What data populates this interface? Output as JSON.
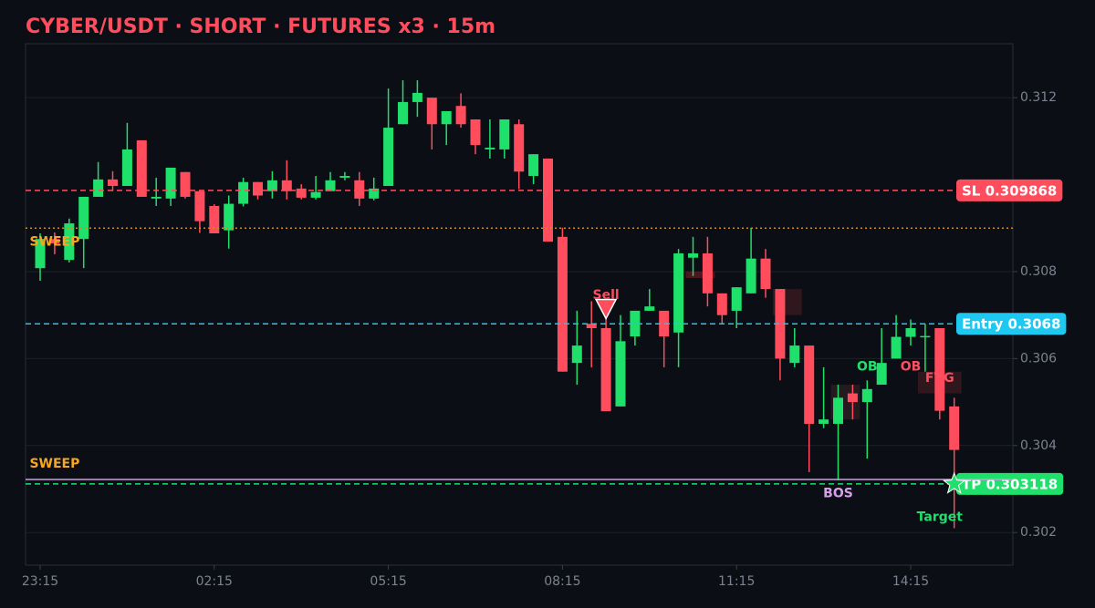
{
  "chart_data": {
    "type": "candlestick",
    "title": "CYBER/USDT · SHORT · FUTURES x3 · 15m",
    "categories": [
      "23:15",
      null,
      null,
      null,
      null,
      null,
      null,
      null,
      null,
      null,
      null,
      null,
      "02:15",
      null,
      null,
      null,
      null,
      null,
      null,
      null,
      null,
      null,
      null,
      null,
      "05:15",
      null,
      null,
      null,
      null,
      null,
      null,
      null,
      null,
      null,
      null,
      null,
      "08:15",
      null,
      null,
      null,
      null,
      null,
      null,
      null,
      null,
      null,
      null,
      null,
      "11:15",
      null,
      null,
      null,
      null,
      null,
      null,
      null,
      null,
      null,
      null,
      null,
      "14:15",
      null,
      null,
      null
    ],
    "open": [
      0.30808,
      0.30875,
      0.30827,
      0.30875,
      0.30972,
      0.31012,
      0.30997,
      0.31102,
      0.30968,
      0.30968,
      0.31029,
      0.30985,
      0.30951,
      0.30895,
      0.30956,
      0.31006,
      0.30985,
      0.3101,
      0.30991,
      0.3097,
      0.30985,
      0.31016,
      0.3101,
      0.30968,
      0.30997,
      0.31139,
      0.3119,
      0.312,
      0.31139,
      0.31181,
      0.3115,
      0.31081,
      0.31081,
      0.31139,
      0.3102,
      0.3106,
      0.3088,
      0.3059,
      0.3068,
      0.3067,
      0.3049,
      0.30651,
      0.3071,
      0.3071,
      0.3066,
      0.30832,
      0.30842,
      0.3075,
      0.3071,
      0.3075,
      0.3083,
      0.3076,
      0.3059,
      0.3063,
      0.3045,
      0.3045,
      0.3052,
      0.305,
      0.3054,
      0.306,
      0.3065,
      0.3065,
      0.3067,
      0.3049
    ],
    "high": [
      0.30888,
      0.3089,
      0.30922,
      0.30972,
      0.31052,
      0.31031,
      0.31142,
      0.31102,
      0.31016,
      0.31039,
      0.31029,
      0.30985,
      0.30955,
      0.30975,
      0.31016,
      0.31006,
      0.31031,
      0.31056,
      0.31001,
      0.3102,
      0.31029,
      0.31029,
      0.31029,
      0.31016,
      0.31221,
      0.3124,
      0.3124,
      0.312,
      0.31169,
      0.3121,
      0.3115,
      0.3115,
      0.3115,
      0.3115,
      0.3107,
      0.3106,
      0.30901,
      0.3071,
      0.30732,
      0.307,
      0.307,
      0.3071,
      0.3076,
      0.3071,
      0.30852,
      0.3088,
      0.3088,
      0.3075,
      0.30764,
      0.30901,
      0.30852,
      0.3076,
      0.3067,
      0.3063,
      0.3058,
      0.3054,
      0.3054,
      0.3055,
      0.3067,
      0.307,
      0.3069,
      0.3068,
      0.3067,
      0.3051
    ],
    "low": [
      0.30779,
      0.3084,
      0.30821,
      0.30808,
      0.30972,
      0.30985,
      0.30997,
      0.30972,
      0.30951,
      0.30951,
      0.30968,
      0.30889,
      0.30888,
      0.30853,
      0.3095,
      0.30966,
      0.30968,
      0.30966,
      0.30966,
      0.30966,
      0.30985,
      0.3101,
      0.30951,
      0.30964,
      0.30997,
      0.31139,
      0.31156,
      0.31081,
      0.31091,
      0.31131,
      0.3107,
      0.3106,
      0.3106,
      0.3099,
      0.31001,
      0.30869,
      0.3057,
      0.3054,
      0.3058,
      0.30479,
      0.3049,
      0.3063,
      0.3071,
      0.3058,
      0.3058,
      0.3079,
      0.3072,
      0.3068,
      0.3067,
      0.3075,
      0.3074,
      0.3055,
      0.3058,
      0.30339,
      0.3044,
      0.3032,
      0.3046,
      0.3037,
      0.3054,
      0.306,
      0.3063,
      0.3057,
      0.3046,
      0.3021
    ],
    "close": [
      0.30875,
      0.30865,
      0.30911,
      0.30972,
      0.31012,
      0.30997,
      0.31081,
      0.30972,
      0.30972,
      0.31039,
      0.30972,
      0.30916,
      0.30888,
      0.30956,
      0.31006,
      0.30975,
      0.3101,
      0.30985,
      0.3097,
      0.30983,
      0.3101,
      0.3102,
      0.30968,
      0.30991,
      0.31131,
      0.3119,
      0.31211,
      0.31139,
      0.31169,
      0.31139,
      0.31091,
      0.31085,
      0.3115,
      0.3103,
      0.3107,
      0.30869,
      0.3057,
      0.3063,
      0.3067,
      0.30479,
      0.3064,
      0.3071,
      0.3072,
      0.30651,
      0.30842,
      0.30842,
      0.3075,
      0.307,
      0.30764,
      0.3083,
      0.3076,
      0.306,
      0.3063,
      0.3045,
      0.3046,
      0.3051,
      0.305,
      0.3053,
      0.3059,
      0.3065,
      0.3067,
      0.30652,
      0.3048,
      0.3039
    ],
    "up_color": "#1ee06b",
    "down_color": "#ff4d5e",
    "ylim": [
      0.30125,
      0.31324
    ],
    "yticks": [
      0.302,
      0.304,
      0.306,
      0.308,
      0.312
    ],
    "grid": true,
    "levels": [
      {
        "label": "SL 0.309868",
        "value": 0.309868,
        "color": "#ff4d5e",
        "style": "dashed"
      },
      {
        "label": "Entry 0.3068",
        "value": 0.3068,
        "color": "#1ec8f0",
        "style": "dashed"
      },
      {
        "label": "TP 0.303118",
        "value": 0.303118,
        "color": "#1ee06b",
        "style": "dashed"
      },
      {
        "value": 0.309,
        "color": "#d18a1f",
        "style": "dotted"
      },
      {
        "value": 0.30322,
        "color": "#c9a0dc",
        "style": "solid"
      }
    ],
    "zones": [
      {
        "from": 45,
        "to": 46,
        "low": 0.30785,
        "high": 0.308,
        "color": "#5a1a22"
      },
      {
        "from": 51,
        "to": 52,
        "low": 0.307,
        "high": 0.3076,
        "color": "#3a1a20"
      },
      {
        "from": 55,
        "to": 56,
        "low": 0.3046,
        "high": 0.3054,
        "color": "#2a1e22"
      },
      {
        "from": 61,
        "to": 63,
        "low": 0.3052,
        "high": 0.3057,
        "color": "#3a1a20"
      }
    ],
    "annotations": [
      {
        "text": "Sell",
        "x": 39,
        "y": 0.30745,
        "color": "#ff4d5e"
      },
      {
        "text": "SWEEP",
        "x": 1,
        "y": 0.30868,
        "color": "#f5a623"
      },
      {
        "text": "SWEEP",
        "x": 1,
        "y": 0.30358,
        "color": "#f5a623"
      },
      {
        "text": "OB",
        "x": 57,
        "y": 0.30581,
        "color": "#1ee06b"
      },
      {
        "text": "OB",
        "x": 60,
        "y": 0.30581,
        "color": "#ff4d5e"
      },
      {
        "text": "FVG",
        "x": 62,
        "y": 0.30555,
        "color": "#ff4d5e"
      },
      {
        "text": "BOS",
        "x": 55,
        "y": 0.3029,
        "color": "#d4a0e8"
      },
      {
        "text": "Target",
        "x": 62,
        "y": 0.30235,
        "color": "#1ee06b"
      }
    ],
    "markers": [
      {
        "shape": "triangle-down",
        "x": 39,
        "y": 0.30715,
        "color": "#ff4d5e"
      },
      {
        "shape": "star",
        "x": 63,
        "y": 0.303118,
        "color": "#1ee06b"
      }
    ]
  }
}
